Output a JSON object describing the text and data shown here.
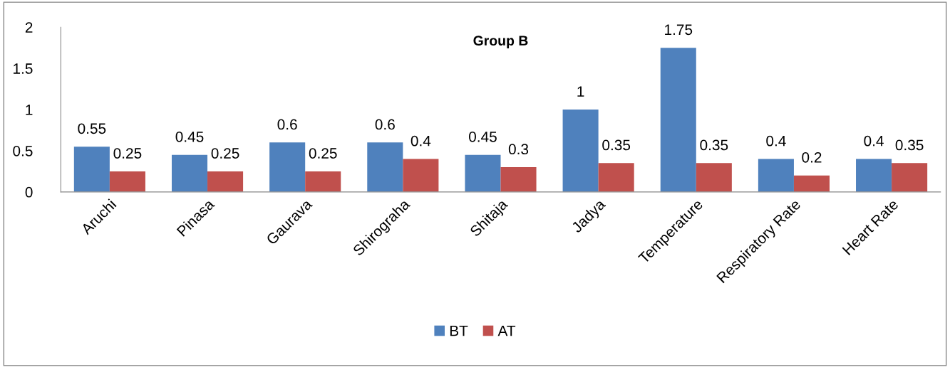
{
  "chart_data": {
    "type": "bar",
    "title": "Group B",
    "categories": [
      "Aruchi",
      "Pinasa",
      "Gaurava",
      "Shirograha",
      "Shitaja",
      "Jadya",
      "Temperature",
      "Respiratory Rate",
      "Heart Rate"
    ],
    "series": [
      {
        "name": "BT",
        "color": "#4f81bd",
        "values": [
          0.55,
          0.45,
          0.6,
          0.6,
          0.45,
          1,
          1.75,
          0.4,
          0.4
        ]
      },
      {
        "name": "AT",
        "color": "#c0504d",
        "values": [
          0.25,
          0.25,
          0.25,
          0.4,
          0.3,
          0.35,
          0.35,
          0.2,
          0.35
        ]
      }
    ],
    "ylim": [
      0,
      2
    ],
    "yticks": [
      0,
      0.5,
      1,
      1.5,
      2
    ],
    "data_labels": true,
    "grid": false,
    "legend": "bottom"
  }
}
